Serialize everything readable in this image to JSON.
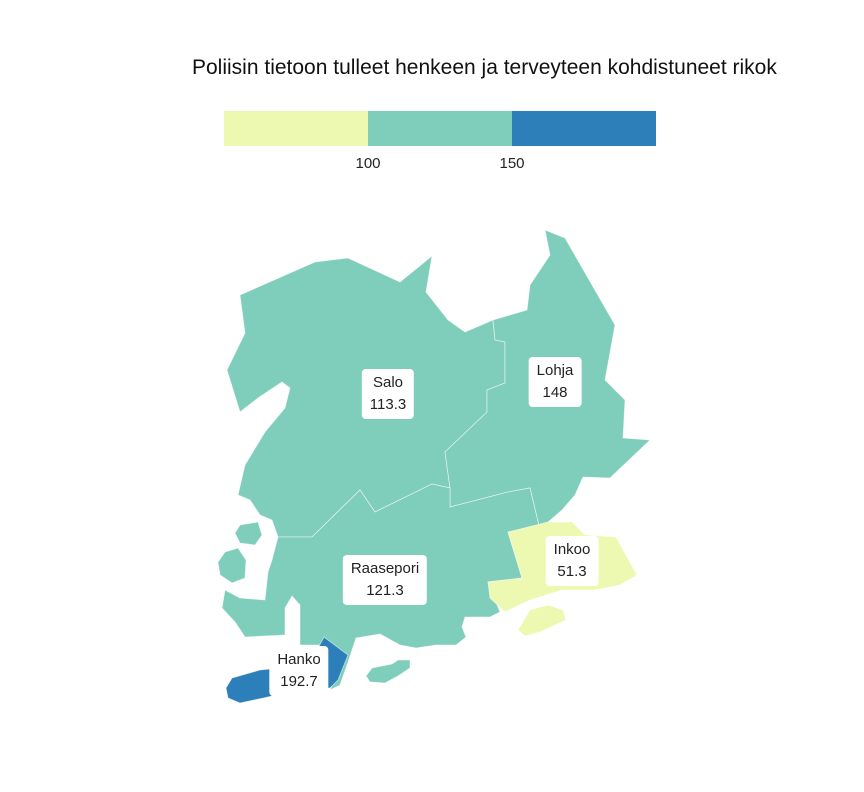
{
  "title": "Poliisin tietoon tulleet henkeen ja terveyteen kohdistuneet rikok",
  "legend": {
    "colors": [
      "#edf8b1",
      "#7fcdbb",
      "#2c7fb8"
    ],
    "ticks": [
      "100",
      "150"
    ]
  },
  "chart_data": {
    "type": "choropleth",
    "breaks": [
      100,
      150
    ],
    "regions": [
      {
        "name": "Salo",
        "value": "113.3",
        "color": "#7fcdbb"
      },
      {
        "name": "Lohja",
        "value": "148",
        "color": "#7fcdbb"
      },
      {
        "name": "Raasepori",
        "value": "121.3",
        "color": "#7fcdbb"
      },
      {
        "name": "Inkoo",
        "value": "51.3",
        "color": "#edf8b1"
      },
      {
        "name": "Hanko",
        "value": "192.7",
        "color": "#2c7fb8"
      }
    ]
  }
}
